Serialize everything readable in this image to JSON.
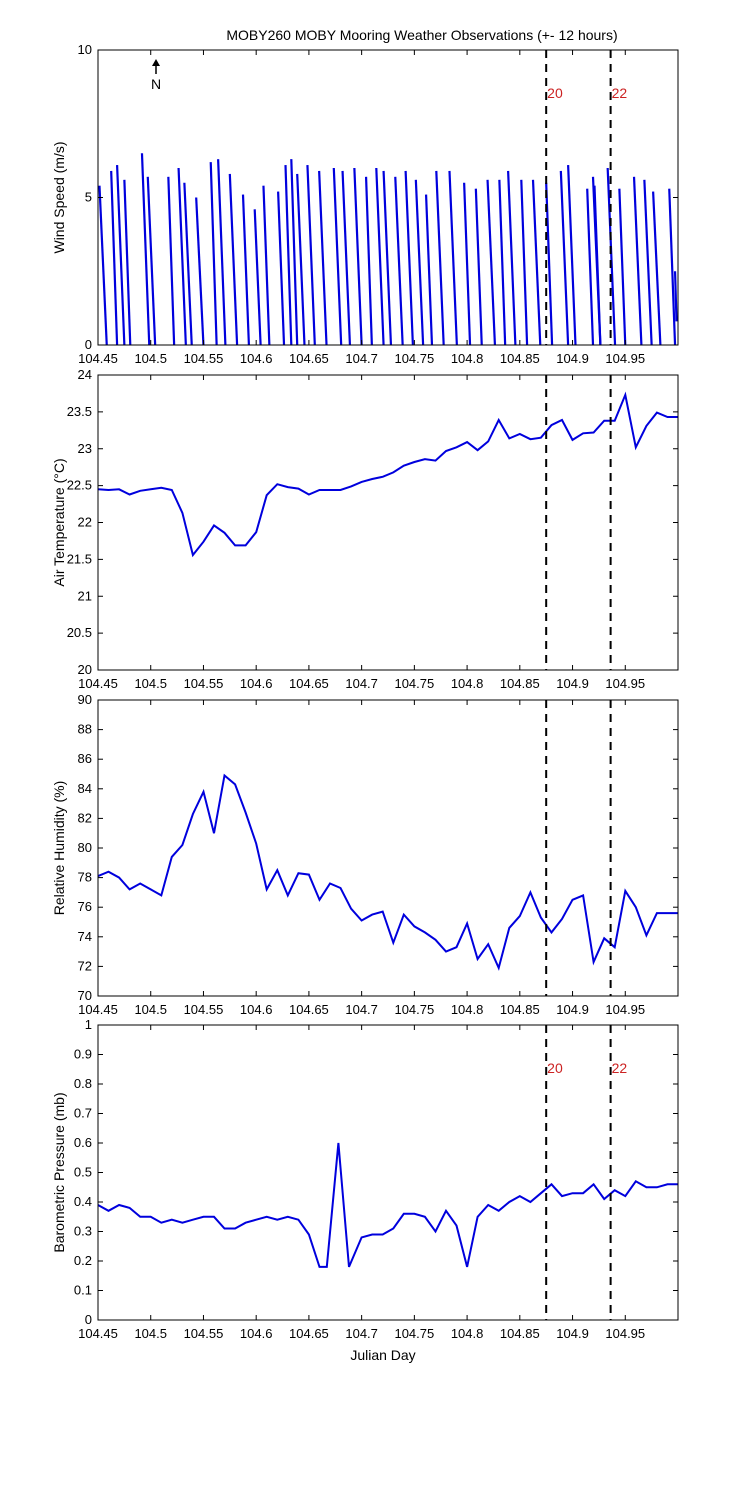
{
  "figure": {
    "title": "MOBY260 MOBY Mooring Weather Observations (+- 12 hours)",
    "north_marker": "N",
    "line_color": "#0000dd",
    "marker_line_color": "#000000",
    "marker_label_color": "#cc2222"
  },
  "chart_data": [
    {
      "type": "line",
      "subtype": "wind-vector-stick",
      "title": "MOBY260 MOBY Mooring Weather Observations (+- 12 hours)",
      "xlabel": "",
      "ylabel": "Wind Speed (m/s)",
      "xlim": [
        104.45,
        105.0
      ],
      "ylim": [
        0,
        10
      ],
      "xticks": [
        104.45,
        104.5,
        104.55,
        104.6,
        104.65,
        104.7,
        104.75,
        104.8,
        104.85,
        104.9,
        104.95
      ],
      "xtick_labels": [
        "104.45",
        "104.5",
        "104.55",
        "104.6",
        "104.65",
        "104.7",
        "104.75",
        "104.8",
        "104.85",
        "104.9",
        "104.95"
      ],
      "yticks": [
        0,
        5,
        10
      ],
      "ytick_labels": [
        "0",
        "5",
        "10"
      ],
      "sticks": [
        {
          "x0": 104.4514,
          "y0": 5.4,
          "x1": 104.4583,
          "y1": 0
        },
        {
          "x0": 104.4625,
          "y0": 5.9,
          "x1": 104.4681,
          "y1": 0
        },
        {
          "x0": 104.4681,
          "y0": 6.1,
          "x1": 104.475,
          "y1": 0
        },
        {
          "x0": 104.475,
          "y0": 5.6,
          "x1": 104.4806,
          "y1": 0
        },
        {
          "x0": 104.4917,
          "y0": 6.5,
          "x1": 104.4986,
          "y1": 0
        },
        {
          "x0": 104.4972,
          "y0": 5.7,
          "x1": 104.5042,
          "y1": 0
        },
        {
          "x0": 104.5167,
          "y0": 5.7,
          "x1": 104.5222,
          "y1": 0
        },
        {
          "x0": 104.5264,
          "y0": 6.0,
          "x1": 104.5333,
          "y1": 0
        },
        {
          "x0": 104.5319,
          "y0": 5.5,
          "x1": 104.5389,
          "y1": 0
        },
        {
          "x0": 104.5431,
          "y0": 5.0,
          "x1": 104.55,
          "y1": 0
        },
        {
          "x0": 104.5569,
          "y0": 6.2,
          "x1": 104.5625,
          "y1": 0
        },
        {
          "x0": 104.5639,
          "y0": 6.3,
          "x1": 104.5708,
          "y1": 0
        },
        {
          "x0": 104.575,
          "y0": 5.8,
          "x1": 104.5819,
          "y1": 0
        },
        {
          "x0": 104.5875,
          "y0": 5.1,
          "x1": 104.5931,
          "y1": 0
        },
        {
          "x0": 104.5986,
          "y0": 4.6,
          "x1": 104.6042,
          "y1": 0
        },
        {
          "x0": 104.6069,
          "y0": 5.4,
          "x1": 104.6125,
          "y1": 0
        },
        {
          "x0": 104.6208,
          "y0": 5.2,
          "x1": 104.6264,
          "y1": 0
        },
        {
          "x0": 104.6278,
          "y0": 6.1,
          "x1": 104.6333,
          "y1": 0
        },
        {
          "x0": 104.6333,
          "y0": 6.3,
          "x1": 104.6389,
          "y1": 0
        },
        {
          "x0": 104.6389,
          "y0": 5.8,
          "x1": 104.6458,
          "y1": 0
        },
        {
          "x0": 104.6486,
          "y0": 6.1,
          "x1": 104.6556,
          "y1": 0
        },
        {
          "x0": 104.6597,
          "y0": 5.9,
          "x1": 104.6667,
          "y1": 0
        },
        {
          "x0": 104.6736,
          "y0": 6.0,
          "x1": 104.6806,
          "y1": 0
        },
        {
          "x0": 104.6819,
          "y0": 5.9,
          "x1": 104.6889,
          "y1": 0
        },
        {
          "x0": 104.6931,
          "y0": 6.0,
          "x1": 104.7,
          "y1": 0
        },
        {
          "x0": 104.7042,
          "y0": 5.7,
          "x1": 104.7097,
          "y1": 0
        },
        {
          "x0": 104.7139,
          "y0": 6.0,
          "x1": 104.7208,
          "y1": 0
        },
        {
          "x0": 104.7208,
          "y0": 5.9,
          "x1": 104.7278,
          "y1": 0
        },
        {
          "x0": 104.7319,
          "y0": 5.7,
          "x1": 104.7389,
          "y1": 0
        },
        {
          "x0": 104.7417,
          "y0": 5.9,
          "x1": 104.7486,
          "y1": 0
        },
        {
          "x0": 104.7514,
          "y0": 5.6,
          "x1": 104.7583,
          "y1": 0
        },
        {
          "x0": 104.7611,
          "y0": 5.1,
          "x1": 104.7667,
          "y1": 0
        },
        {
          "x0": 104.7708,
          "y0": 5.9,
          "x1": 104.7778,
          "y1": 0
        },
        {
          "x0": 104.7833,
          "y0": 5.9,
          "x1": 104.7903,
          "y1": 0
        },
        {
          "x0": 104.7972,
          "y0": 5.5,
          "x1": 104.8028,
          "y1": 0
        },
        {
          "x0": 104.8083,
          "y0": 5.3,
          "x1": 104.8139,
          "y1": 0
        },
        {
          "x0": 104.8194,
          "y0": 5.6,
          "x1": 104.8264,
          "y1": 0
        },
        {
          "x0": 104.8306,
          "y0": 5.6,
          "x1": 104.8361,
          "y1": 0
        },
        {
          "x0": 104.8389,
          "y0": 5.9,
          "x1": 104.8458,
          "y1": 0
        },
        {
          "x0": 104.8514,
          "y0": 5.6,
          "x1": 104.8569,
          "y1": 0
        },
        {
          "x0": 104.8625,
          "y0": 5.6,
          "x1": 104.8694,
          "y1": 0
        },
        {
          "x0": 104.875,
          "y0": 5.5,
          "x1": 104.8806,
          "y1": 0
        },
        {
          "x0": 104.8889,
          "y0": 5.9,
          "x1": 104.8958,
          "y1": 0
        },
        {
          "x0": 104.8958,
          "y0": 6.1,
          "x1": 104.9028,
          "y1": 0
        },
        {
          "x0": 104.9139,
          "y0": 5.3,
          "x1": 104.9194,
          "y1": 0
        },
        {
          "x0": 104.9194,
          "y0": 5.7,
          "x1": 104.9264,
          "y1": 0
        },
        {
          "x0": 104.9208,
          "y0": 5.4,
          "x1": 104.9264,
          "y1": 0
        },
        {
          "x0": 104.9333,
          "y0": 6.0,
          "x1": 104.9403,
          "y1": 0
        },
        {
          "x0": 104.9444,
          "y0": 5.3,
          "x1": 104.95,
          "y1": 0
        },
        {
          "x0": 104.9583,
          "y0": 5.7,
          "x1": 104.9653,
          "y1": 0
        },
        {
          "x0": 104.9681,
          "y0": 5.6,
          "x1": 104.975,
          "y1": 0
        },
        {
          "x0": 104.9764,
          "y0": 5.2,
          "x1": 104.9833,
          "y1": 0
        },
        {
          "x0": 104.9917,
          "y0": 5.3,
          "x1": 104.9972,
          "y1": 0
        },
        {
          "x0": 104.9972,
          "y0": 2.5,
          "x1": 104.9986,
          "y1": 0.8
        }
      ],
      "vlines": [
        {
          "x": 104.875,
          "label": "20"
        },
        {
          "x": 104.9361,
          "label": "22"
        }
      ],
      "grid": false
    },
    {
      "type": "line",
      "title": "",
      "xlabel": "",
      "ylabel": "Air Temperature (°C)",
      "xlim": [
        104.45,
        105.0
      ],
      "ylim": [
        20,
        24
      ],
      "xticks": [
        104.45,
        104.5,
        104.55,
        104.6,
        104.65,
        104.7,
        104.75,
        104.8,
        104.85,
        104.9,
        104.95
      ],
      "xtick_labels": [
        "104.45",
        "104.5",
        "104.55",
        "104.6",
        "104.65",
        "104.7",
        "104.75",
        "104.8",
        "104.85",
        "104.9",
        "104.95"
      ],
      "yticks": [
        20,
        20.5,
        21,
        21.5,
        22,
        22.5,
        23,
        23.5,
        24
      ],
      "ytick_labels": [
        "20",
        "20.5",
        "21",
        "21.5",
        "22",
        "22.5",
        "23",
        "23.5",
        "24"
      ],
      "series": [
        {
          "x": [
            104.45,
            104.46,
            104.47,
            104.48,
            104.49,
            104.5,
            104.51,
            104.52,
            104.53,
            104.54,
            104.55,
            104.56,
            104.57,
            104.58,
            104.59,
            104.6,
            104.61,
            104.62,
            104.63,
            104.64,
            104.65,
            104.66,
            104.67,
            104.68,
            104.69,
            104.7,
            104.71,
            104.72,
            104.73,
            104.74,
            104.75,
            104.76,
            104.77,
            104.78,
            104.79,
            104.8,
            104.81,
            104.82,
            104.83,
            104.84,
            104.85,
            104.86,
            104.87,
            104.88,
            104.89,
            104.9,
            104.91,
            104.92,
            104.93,
            104.94,
            104.95,
            104.96,
            104.97,
            104.98,
            104.99,
            105.0
          ],
          "y": [
            22.45,
            22.44,
            22.45,
            22.38,
            22.43,
            22.45,
            22.47,
            22.44,
            22.13,
            21.56,
            21.74,
            21.96,
            21.86,
            21.69,
            21.69,
            21.87,
            22.37,
            22.52,
            22.48,
            22.46,
            22.38,
            22.44,
            22.44,
            22.44,
            22.49,
            22.55,
            22.59,
            22.62,
            22.68,
            22.77,
            22.82,
            22.86,
            22.84,
            22.97,
            23.02,
            23.09,
            22.98,
            23.1,
            23.39,
            23.14,
            23.2,
            23.13,
            23.15,
            23.32,
            23.39,
            23.12,
            23.21,
            23.22,
            23.38,
            23.38,
            23.73,
            23.02,
            23.31,
            23.49,
            23.43,
            23.43
          ]
        }
      ],
      "vlines": [
        {
          "x": 104.875,
          "label": ""
        },
        {
          "x": 104.9361,
          "label": ""
        }
      ],
      "grid": false
    },
    {
      "type": "line",
      "title": "",
      "xlabel": "",
      "ylabel": "Relative Humidity (%)",
      "xlim": [
        104.45,
        105.0
      ],
      "ylim": [
        70,
        90
      ],
      "xticks": [
        104.45,
        104.5,
        104.55,
        104.6,
        104.65,
        104.7,
        104.75,
        104.8,
        104.85,
        104.9,
        104.95
      ],
      "xtick_labels": [
        "104.45",
        "104.5",
        "104.55",
        "104.6",
        "104.65",
        "104.7",
        "104.75",
        "104.8",
        "104.85",
        "104.9",
        "104.95"
      ],
      "yticks": [
        70,
        72,
        74,
        76,
        78,
        80,
        82,
        84,
        86,
        88,
        90
      ],
      "ytick_labels": [
        "70",
        "72",
        "74",
        "76",
        "78",
        "80",
        "82",
        "84",
        "86",
        "88",
        "90"
      ],
      "series": [
        {
          "x": [
            104.45,
            104.46,
            104.47,
            104.48,
            104.49,
            104.5,
            104.51,
            104.52,
            104.53,
            104.54,
            104.55,
            104.56,
            104.57,
            104.58,
            104.59,
            104.6,
            104.61,
            104.62,
            104.63,
            104.64,
            104.65,
            104.66,
            104.67,
            104.68,
            104.69,
            104.7,
            104.71,
            104.72,
            104.73,
            104.74,
            104.75,
            104.76,
            104.77,
            104.78,
            104.79,
            104.8,
            104.81,
            104.82,
            104.83,
            104.84,
            104.85,
            104.86,
            104.87,
            104.88,
            104.89,
            104.9,
            104.91,
            104.92,
            104.93,
            104.94,
            104.95,
            104.96,
            104.97,
            104.98,
            104.99,
            105.0
          ],
          "y": [
            78.1,
            78.4,
            78.0,
            77.2,
            77.6,
            77.2,
            76.8,
            79.4,
            80.2,
            82.3,
            83.8,
            81.0,
            84.9,
            84.3,
            82.4,
            80.3,
            77.2,
            78.5,
            76.8,
            78.3,
            78.2,
            76.5,
            77.6,
            77.3,
            75.9,
            75.1,
            75.5,
            75.7,
            73.6,
            75.5,
            74.7,
            74.3,
            73.8,
            73.0,
            73.3,
            74.9,
            72.5,
            73.5,
            71.9,
            74.6,
            75.4,
            77.0,
            75.3,
            74.3,
            75.2,
            76.5,
            76.8,
            72.3,
            73.9,
            73.3,
            77.1,
            76.0,
            74.1,
            75.6,
            75.6,
            75.6
          ]
        }
      ],
      "vlines": [
        {
          "x": 104.875,
          "label": ""
        },
        {
          "x": 104.9361,
          "label": ""
        }
      ],
      "grid": false
    },
    {
      "type": "line",
      "title": "",
      "xlabel": "Julian Day",
      "ylabel": "Barometric Pressure (mb)",
      "xlim": [
        104.45,
        105.0
      ],
      "ylim": [
        0,
        1
      ],
      "xticks": [
        104.45,
        104.5,
        104.55,
        104.6,
        104.65,
        104.7,
        104.75,
        104.8,
        104.85,
        104.9,
        104.95
      ],
      "xtick_labels": [
        "104.45",
        "104.5",
        "104.55",
        "104.6",
        "104.65",
        "104.7",
        "104.75",
        "104.8",
        "104.85",
        "104.9",
        "104.95"
      ],
      "yticks": [
        0,
        0.1,
        0.2,
        0.3,
        0.4,
        0.5,
        0.6,
        0.7,
        0.8,
        0.9,
        1
      ],
      "ytick_labels": [
        "0",
        "0.1",
        "0.2",
        "0.3",
        "0.4",
        "0.5",
        "0.6",
        "0.7",
        "0.8",
        "0.9",
        "1"
      ],
      "series": [
        {
          "x": [
            104.45,
            104.46,
            104.47,
            104.48,
            104.49,
            104.5,
            104.51,
            104.52,
            104.53,
            104.54,
            104.55,
            104.56,
            104.57,
            104.58,
            104.59,
            104.6,
            104.61,
            104.62,
            104.63,
            104.64,
            104.65,
            104.66,
            104.667,
            104.678,
            104.688,
            104.7,
            104.71,
            104.72,
            104.73,
            104.74,
            104.75,
            104.76,
            104.77,
            104.78,
            104.79,
            104.8,
            104.81,
            104.82,
            104.83,
            104.84,
            104.85,
            104.86,
            104.87,
            104.88,
            104.89,
            104.9,
            104.91,
            104.92,
            104.93,
            104.94,
            104.95,
            104.96,
            104.97,
            104.98,
            104.99,
            105.0
          ],
          "y": [
            0.39,
            0.37,
            0.39,
            0.38,
            0.35,
            0.35,
            0.33,
            0.34,
            0.33,
            0.34,
            0.35,
            0.35,
            0.31,
            0.31,
            0.33,
            0.34,
            0.35,
            0.34,
            0.35,
            0.34,
            0.29,
            0.18,
            0.18,
            0.6,
            0.18,
            0.28,
            0.29,
            0.29,
            0.31,
            0.36,
            0.36,
            0.35,
            0.3,
            0.37,
            0.32,
            0.18,
            0.35,
            0.39,
            0.37,
            0.4,
            0.42,
            0.4,
            0.43,
            0.46,
            0.42,
            0.43,
            0.43,
            0.46,
            0.41,
            0.44,
            0.42,
            0.47,
            0.45,
            0.45,
            0.46,
            0.46
          ]
        }
      ],
      "vlines": [
        {
          "x": 104.875,
          "label": "20"
        },
        {
          "x": 104.9361,
          "label": "22"
        }
      ],
      "grid": false
    }
  ]
}
